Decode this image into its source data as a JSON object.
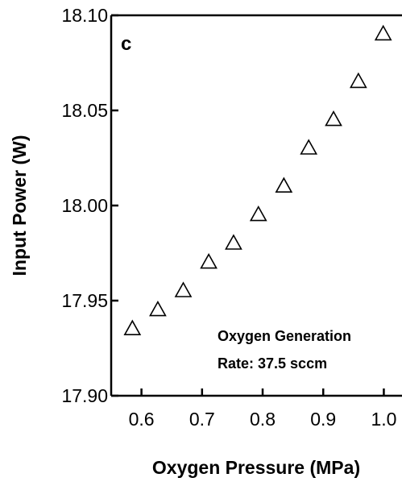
{
  "chart_data": {
    "type": "scatter",
    "panel_label": "c",
    "xlabel": "Oxygen Pressure (MPa)",
    "ylabel": "Input Power (W)",
    "xlim": [
      0.55,
      1.03
    ],
    "ylim": [
      17.9,
      18.1
    ],
    "x_ticks": [
      0.6,
      0.7,
      0.8,
      0.9,
      1.0
    ],
    "x_tick_labels": [
      "0.6",
      "0.7",
      "0.8",
      "0.9",
      "1.0"
    ],
    "y_ticks": [
      17.9,
      17.95,
      18.0,
      18.05,
      18.1
    ],
    "y_tick_labels": [
      "17.90",
      "17.95",
      "18.00",
      "18.05",
      "18.10"
    ],
    "grid": false,
    "marker": "open-triangle",
    "color": "#000000",
    "annotation_lines": [
      "Oxygen Generation",
      "Rate: 37.5 sccm"
    ],
    "series": [
      {
        "x": [
          0.585,
          0.627,
          0.669,
          0.711,
          0.752,
          0.793,
          0.835,
          0.876,
          0.917,
          0.958,
          0.999
        ],
        "y": [
          17.935,
          17.945,
          17.955,
          17.97,
          17.98,
          17.995,
          18.01,
          18.03,
          18.045,
          18.065,
          18.09
        ]
      }
    ]
  }
}
